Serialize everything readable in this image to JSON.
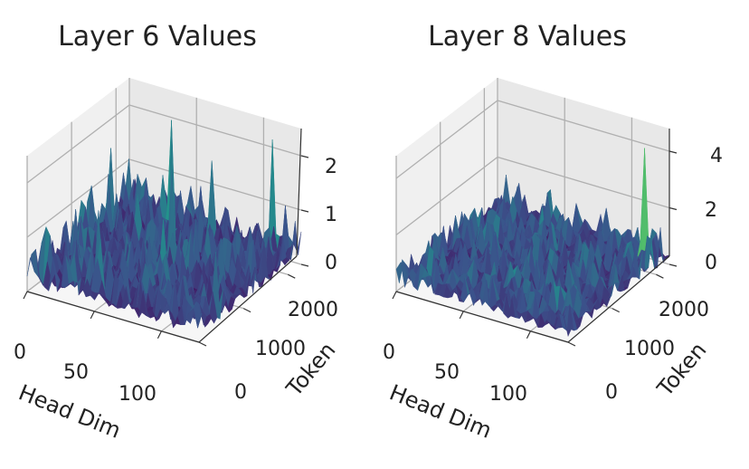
{
  "chart_data": [
    {
      "type": "surface",
      "title": "Layer 6 Values",
      "xlabel": "Head Dim",
      "ylabel": "Token",
      "zlabel": "",
      "xlim": [
        0,
        128
      ],
      "ylim": [
        0,
        2300
      ],
      "zlim": [
        0,
        2.5
      ],
      "x_ticks": [
        "0",
        "50",
        "100"
      ],
      "x_tick_values": [
        0,
        50,
        100
      ],
      "y_ticks": [
        "0",
        "1000",
        "2000"
      ],
      "y_tick_values": [
        0,
        1000,
        2000
      ],
      "z_ticks": [
        "0",
        "1",
        "2"
      ],
      "z_tick_values": [
        0,
        1,
        2
      ],
      "colormap": "viridis",
      "typical_value": 0.5,
      "peak_value": 2.3,
      "spikes": [
        {
          "head_dim": 45,
          "token": 1900,
          "value": 2.3
        },
        {
          "head_dim": 110,
          "token": 2200,
          "value": 2.2
        },
        {
          "head_dim": 60,
          "token": 1400,
          "value": 1.8
        }
      ],
      "grid": true
    },
    {
      "type": "surface",
      "title": "Layer 8 Values",
      "xlabel": "Head Dim",
      "ylabel": "Token",
      "zlabel": "",
      "xlim": [
        0,
        128
      ],
      "ylim": [
        0,
        2300
      ],
      "zlim": [
        0,
        4.8
      ],
      "x_ticks": [
        "0",
        "50",
        "100"
      ],
      "x_tick_values": [
        0,
        50,
        100
      ],
      "y_ticks": [
        "0",
        "1000",
        "2000"
      ],
      "y_tick_values": [
        0,
        1000,
        2000
      ],
      "z_ticks": [
        "0",
        "2",
        "4"
      ],
      "z_tick_values": [
        0,
        2,
        4
      ],
      "colormap": "viridis",
      "typical_value": 0.8,
      "peak_value": 4.3,
      "spikes": [
        {
          "head_dim": 118,
          "token": 2000,
          "value": 4.3
        },
        {
          "head_dim": 85,
          "token": 700,
          "value": 1.3
        }
      ],
      "grid": true
    }
  ],
  "colors": {
    "pane_left": "#f0f0f0",
    "pane_back": "#e8e8e8",
    "pane_floor": "#f6f6f6",
    "grid": "#b0b0b0",
    "axis": "#333333"
  }
}
